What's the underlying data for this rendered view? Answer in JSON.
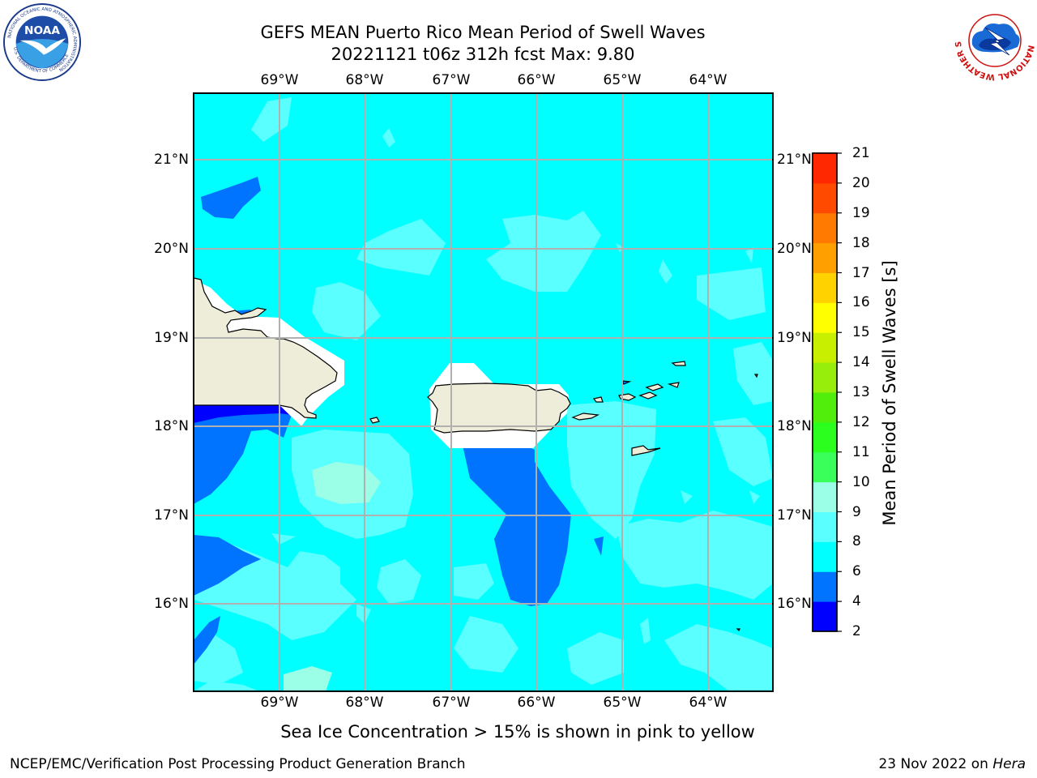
{
  "title_line1": "GEFS MEAN Puerto Rico Mean Period of Swell Waves",
  "title_line2": "20221121 t06z 312h fcst   Max: 9.80",
  "lon_ticks": [
    "69°W",
    "68°W",
    "67°W",
    "66°W",
    "65°W",
    "64°W"
  ],
  "lat_ticks": [
    "21°N",
    "20°N",
    "19°N",
    "18°N",
    "17°N",
    "16°N"
  ],
  "colorbar": {
    "label": "Mean Period of Swell Waves [s]",
    "ticks": [
      "2",
      "4",
      "6",
      "8",
      "9",
      "10",
      "11",
      "12",
      "13",
      "14",
      "15",
      "16",
      "17",
      "18",
      "19",
      "20",
      "21"
    ],
    "colors": [
      "#0000ff",
      "#0073ff",
      "#00ffff",
      "#5affff",
      "#9affe6",
      "#3aff5a",
      "#2aff1e",
      "#50ee0a",
      "#96ee0a",
      "#c8ee00",
      "#ffff00",
      "#ffd200",
      "#ffa000",
      "#ff7a00",
      "#ff4a00",
      "#ff2800"
    ]
  },
  "caption": "Sea Ice Concentration > 15% is shown in pink to yellow",
  "footer_left": "NCEP/EMC/Verification Post Processing Product Generation Branch",
  "footer_date": "23 Nov 2022 on",
  "footer_host": "Hera",
  "noaa_logo": {
    "text": "NOAA",
    "ring_text": "NATIONAL OCEANIC AND ATMOSPHERIC ADMINISTRATION",
    "bottom_text": "U.S. DEPARTMENT OF COMMERCE"
  },
  "nws_logo": {
    "ring_text": "NATIONAL WEATHER SERVICE"
  },
  "map_data": {
    "domain": {
      "lon": [
        -70.0,
        -63.3
      ],
      "lat": [
        15.0,
        21.75
      ]
    },
    "field": "Mean Period of Swell Waves",
    "max_value": 9.8,
    "land_color": "#eeedda",
    "dominant_shading": "6-8 s",
    "regions": [
      "Hispaniola (east)",
      "Puerto Rico",
      "Virgin Islands",
      "St. Croix"
    ]
  }
}
